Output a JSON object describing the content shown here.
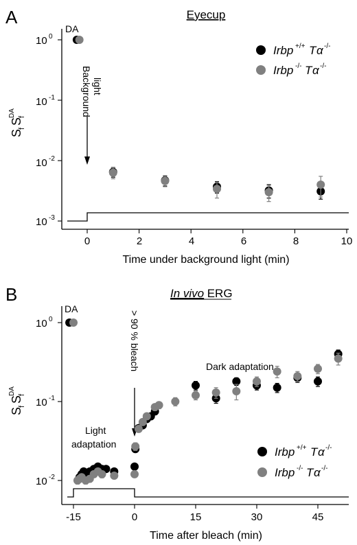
{
  "colors": {
    "wt": "#000000",
    "ko": "#808080"
  },
  "legend": {
    "wt": {
      "gene": "Irbp",
      "gene_sup": "+/+",
      "t": "T",
      "alpha": "α",
      "alpha_sup": "-/-"
    },
    "ko": {
      "gene": "Irbp",
      "gene_sup": "-/-",
      "t": "T",
      "alpha": "α",
      "alpha_sup": "-/-"
    }
  },
  "ylabel": {
    "s": "S",
    "f": "f",
    "s2": "S",
    "f2": "f",
    "da": "DA"
  },
  "panel_a": {
    "label": "A",
    "title": "Eyecup",
    "xlabel": "Time under background light (min)",
    "x_ticks": [
      "0",
      "2",
      "4",
      "6",
      "8",
      "10"
    ],
    "y_ticks": [
      "10",
      "10",
      "10",
      "10"
    ],
    "y_exp": [
      "0",
      "-1",
      "-2",
      "-3"
    ],
    "da_label": "DA",
    "annotation_1": "Background",
    "annotation_2": "light"
  },
  "panel_b": {
    "label": "B",
    "title_italic": "In vivo",
    "title_rest": " ERG",
    "xlabel": "Time after bleach (min)",
    "x_ticks": [
      "-15",
      "0",
      "15",
      "30",
      "45"
    ],
    "y_ticks": [
      "10",
      "10",
      "10"
    ],
    "y_exp": [
      "0",
      "-1",
      "-2"
    ],
    "da_label": "DA",
    "annotation_bleach": "> 90 % bleach",
    "annotation_light_1": "Light",
    "annotation_light_2": "adaptation",
    "annotation_dark": "Dark adaptation"
  },
  "chart_data": [
    {
      "type": "scatter",
      "title": "Eyecup",
      "xlabel": "Time under background light (min)",
      "ylabel": "Sf/Sf DA",
      "xlim": [
        -1,
        10
      ],
      "ylim": [
        0.001,
        1.6
      ],
      "yscale": "log",
      "legend_position": "top-right",
      "series": [
        {
          "name": "Irbp+/+Tα-/-",
          "color": "#000000",
          "points": [
            {
              "x": -0.4,
              "y": 1.0,
              "err": 0
            },
            {
              "x": 1,
              "y": 0.0065,
              "err": 0.0012
            },
            {
              "x": 3,
              "y": 0.0047,
              "err": 0.0009
            },
            {
              "x": 5,
              "y": 0.0037,
              "err": 0.0008
            },
            {
              "x": 7,
              "y": 0.0032,
              "err": 0.0008
            },
            {
              "x": 9,
              "y": 0.0031,
              "err": 0.0008
            }
          ]
        },
        {
          "name": "Irbp-/-Tα-/-",
          "color": "#808080",
          "points": [
            {
              "x": -0.3,
              "y": 1.0,
              "err": 0
            },
            {
              "x": 1,
              "y": 0.0063,
              "err": 0.0013
            },
            {
              "x": 3,
              "y": 0.0046,
              "err": 0.0009
            },
            {
              "x": 5,
              "y": 0.0034,
              "err": 0.001
            },
            {
              "x": 7,
              "y": 0.003,
              "err": 0.0009
            },
            {
              "x": 9,
              "y": 0.004,
              "err": 0.0015
            }
          ]
        }
      ]
    },
    {
      "type": "scatter",
      "title": "In vivo ERG",
      "xlabel": "Time after bleach (min)",
      "ylabel": "Sf/Sf DA",
      "xlim": [
        -18,
        52
      ],
      "ylim": [
        0.005,
        2
      ],
      "yscale": "log",
      "legend_position": "bottom-right",
      "series": [
        {
          "name": "Irbp+/+Tα-/-",
          "color": "#000000",
          "points": [
            {
              "x": -16,
              "y": 1.0,
              "err": 0
            },
            {
              "x": -13.5,
              "y": 0.011,
              "err": 0.001
            },
            {
              "x": -13,
              "y": 0.012,
              "err": 0.001
            },
            {
              "x": -12.5,
              "y": 0.013,
              "err": 0.001
            },
            {
              "x": -12,
              "y": 0.012,
              "err": 0.001
            },
            {
              "x": -11.5,
              "y": 0.011,
              "err": 0.001
            },
            {
              "x": -11,
              "y": 0.013,
              "err": 0.001
            },
            {
              "x": -10,
              "y": 0.014,
              "err": 0.001
            },
            {
              "x": -9,
              "y": 0.015,
              "err": 0.001
            },
            {
              "x": -8,
              "y": 0.014,
              "err": 0.001
            },
            {
              "x": -7,
              "y": 0.014,
              "err": 0.001
            },
            {
              "x": -5,
              "y": 0.013,
              "err": 0.001
            },
            {
              "x": 0,
              "y": 0.015,
              "err": 0.001
            },
            {
              "x": 0.2,
              "y": 0.025,
              "err": 0.002
            },
            {
              "x": 1,
              "y": 0.046,
              "err": 0.003
            },
            {
              "x": 2,
              "y": 0.05,
              "err": 0.004
            },
            {
              "x": 3,
              "y": 0.06,
              "err": 0.005
            },
            {
              "x": 4,
              "y": 0.065,
              "err": 0.006
            },
            {
              "x": 5,
              "y": 0.075,
              "err": 0.007
            },
            {
              "x": 15,
              "y": 0.16,
              "err": 0.02
            },
            {
              "x": 20,
              "y": 0.11,
              "err": 0.015
            },
            {
              "x": 25,
              "y": 0.18,
              "err": 0.02
            },
            {
              "x": 30,
              "y": 0.16,
              "err": 0.02
            },
            {
              "x": 35,
              "y": 0.15,
              "err": 0.02
            },
            {
              "x": 40,
              "y": 0.2,
              "err": 0.025
            },
            {
              "x": 45,
              "y": 0.18,
              "err": 0.025
            },
            {
              "x": 50,
              "y": 0.4,
              "err": 0.05
            }
          ]
        },
        {
          "name": "Irbp-/-Tα-/-",
          "color": "#808080",
          "points": [
            {
              "x": -15,
              "y": 1.0,
              "err": 0
            },
            {
              "x": -14,
              "y": 0.01,
              "err": 0.001
            },
            {
              "x": -13.5,
              "y": 0.0105,
              "err": 0.001
            },
            {
              "x": -13,
              "y": 0.011,
              "err": 0.001
            },
            {
              "x": -12,
              "y": 0.01,
              "err": 0.001
            },
            {
              "x": -11,
              "y": 0.0105,
              "err": 0.001
            },
            {
              "x": -10,
              "y": 0.012,
              "err": 0.001
            },
            {
              "x": -9,
              "y": 0.013,
              "err": 0.0012
            },
            {
              "x": -8,
              "y": 0.012,
              "err": 0.0012
            },
            {
              "x": -5,
              "y": 0.0115,
              "err": 0.001
            },
            {
              "x": 0,
              "y": 0.012,
              "err": 0.001
            },
            {
              "x": 0.2,
              "y": 0.027,
              "err": 0.003
            },
            {
              "x": 1,
              "y": 0.045,
              "err": 0.004
            },
            {
              "x": 2,
              "y": 0.055,
              "err": 0.005
            },
            {
              "x": 3,
              "y": 0.065,
              "err": 0.006
            },
            {
              "x": 5,
              "y": 0.085,
              "err": 0.008
            },
            {
              "x": 6,
              "y": 0.09,
              "err": 0.009
            },
            {
              "x": 10,
              "y": 0.1,
              "err": 0.012
            },
            {
              "x": 15,
              "y": 0.12,
              "err": 0.015
            },
            {
              "x": 20,
              "y": 0.13,
              "err": 0.02
            },
            {
              "x": 25,
              "y": 0.135,
              "err": 0.03
            },
            {
              "x": 30,
              "y": 0.18,
              "err": 0.025
            },
            {
              "x": 35,
              "y": 0.24,
              "err": 0.04
            },
            {
              "x": 40,
              "y": 0.21,
              "err": 0.03
            },
            {
              "x": 45,
              "y": 0.26,
              "err": 0.035
            },
            {
              "x": 50,
              "y": 0.35,
              "err": 0.06
            }
          ]
        }
      ]
    }
  ]
}
